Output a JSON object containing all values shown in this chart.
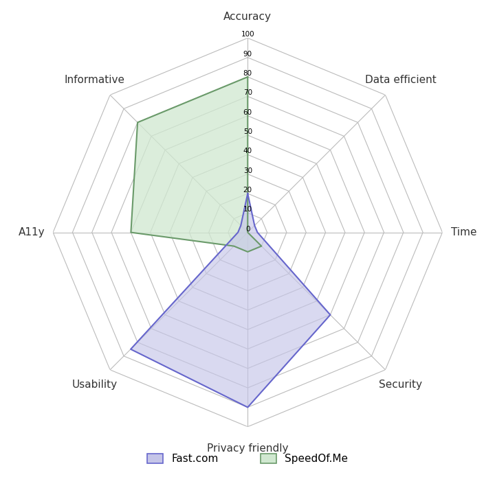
{
  "categories": [
    "Accuracy",
    "Data efficient",
    "Time",
    "Security",
    "Privacy friendly",
    "Usability",
    "A11y",
    "Informative"
  ],
  "fast_com": [
    20,
    5,
    5,
    60,
    90,
    85,
    5,
    5
  ],
  "speedofme": [
    80,
    0,
    0,
    10,
    10,
    10,
    60,
    80
  ],
  "fast_color": "#6666cc",
  "fast_fill": "#c5c5e8",
  "speedofme_color": "#6a9a6a",
  "speedofme_fill": "#d0e8d0",
  "grid_color": "#bbbbbb",
  "label_color": "#333333",
  "ytick_values": [
    0,
    10,
    20,
    30,
    40,
    50,
    60,
    70,
    80,
    90,
    100
  ],
  "fast_label": "Fast.com",
  "speedofme_label": "SpeedOf.Me",
  "legend_fast_color": "#c5c5e8",
  "legend_fast_edge": "#6666cc",
  "legend_speedofme_color": "#d0e8d0",
  "legend_speedofme_edge": "#6a9a6a",
  "background_color": "#ffffff",
  "figsize": [
    7.2,
    6.95
  ],
  "dpi": 100
}
